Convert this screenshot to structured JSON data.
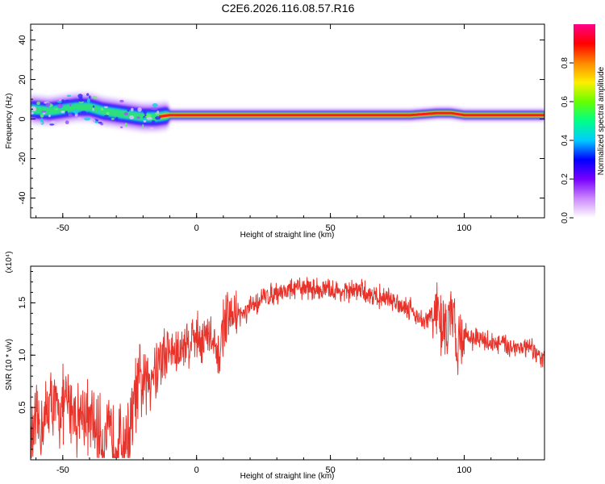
{
  "title": "C2E6.2026.116.08.57.R16",
  "chart_data": [
    {
      "type": "heatmap",
      "xlabel": "Height of straight line (km)",
      "ylabel": "Frequency (Hz)",
      "xlim": [
        -62,
        130
      ],
      "ylim": [
        -50,
        48
      ],
      "x_ticks": [
        -50,
        0,
        50,
        100
      ],
      "y_ticks": [
        -40,
        -20,
        0,
        20,
        40
      ],
      "colorbar": {
        "label": "Normalized spectral amplitude",
        "range": [
          0,
          1
        ],
        "ticks": [
          "0.0",
          "0.2",
          "0.4",
          "0.6",
          "0.8"
        ],
        "colors": [
          "#ffffff",
          "#cc88ff",
          "#7700ff",
          "#0000ff",
          "#00ccff",
          "#00ff88",
          "#66ff00",
          "#ffee00",
          "#ff8800",
          "#ff0000",
          "#ff0088"
        ]
      },
      "ridge": {
        "x": [
          -62,
          -55,
          -50,
          -45,
          -40,
          -35,
          -30,
          -25,
          -20,
          -15,
          -10,
          -5,
          0,
          10,
          20,
          40,
          60,
          80,
          90,
          95,
          100,
          110,
          120,
          130
        ],
        "y": [
          5,
          4,
          5,
          6,
          6,
          4,
          3,
          2,
          1,
          1,
          2,
          2,
          2,
          2,
          2,
          2,
          2,
          2,
          3,
          3,
          2,
          2,
          2,
          2
        ]
      }
    },
    {
      "type": "line",
      "xlabel": "Height of straight line (km)",
      "ylabel": "SNR (10 * v/v)",
      "y_multiplier": "(x10⁴)",
      "xlim": [
        -62,
        130
      ],
      "ylim": [
        0,
        1.85
      ],
      "x_ticks": [
        -50,
        0,
        50,
        100
      ],
      "y_ticks": [
        0.5,
        1.0,
        1.5
      ],
      "color": "#e8332b",
      "x": [
        -62,
        -60,
        -57,
        -55,
        -52,
        -50,
        -47,
        -45,
        -42,
        -40,
        -37,
        -35,
        -32,
        -30,
        -27,
        -25,
        -23,
        -21,
        -19,
        -17,
        -15,
        -12,
        -10,
        -7,
        -5,
        -2,
        0,
        3,
        5,
        8,
        10,
        13,
        15,
        18,
        20,
        25,
        30,
        35,
        40,
        45,
        50,
        55,
        60,
        65,
        70,
        75,
        80,
        85,
        88,
        91,
        94,
        95,
        97,
        100,
        105,
        110,
        115,
        120,
        125,
        130
      ],
      "values": [
        0.15,
        0.3,
        0.35,
        0.55,
        0.45,
        0.5,
        0.55,
        0.42,
        0.45,
        0.35,
        0.28,
        0.2,
        0.22,
        0.18,
        0.2,
        0.25,
        0.6,
        0.75,
        0.7,
        0.85,
        0.9,
        1.0,
        1.05,
        1.0,
        1.1,
        1.15,
        1.2,
        1.15,
        1.2,
        0.9,
        1.3,
        1.35,
        1.4,
        1.38,
        1.45,
        1.55,
        1.6,
        1.62,
        1.65,
        1.63,
        1.62,
        1.6,
        1.62,
        1.58,
        1.55,
        1.5,
        1.45,
        1.3,
        1.4,
        1.35,
        1.2,
        1.4,
        1.15,
        1.2,
        1.15,
        1.12,
        1.1,
        1.08,
        1.05,
        0.95
      ]
    }
  ]
}
